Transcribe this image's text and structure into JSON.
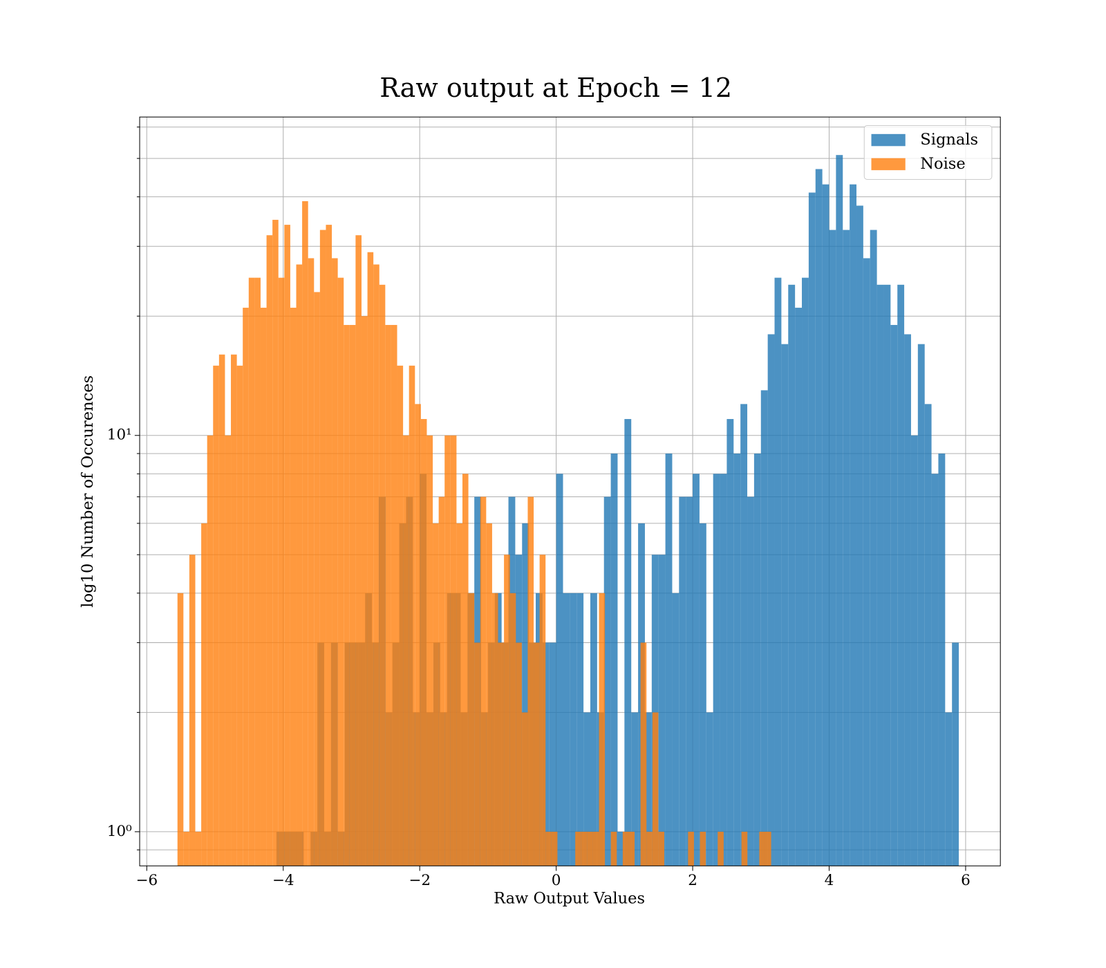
{
  "chart_data": {
    "type": "histogram",
    "title": "Raw output at Epoch = 12",
    "x_label": "Raw Output Values",
    "y_label": "log10 Number of Occurences",
    "log_y": true,
    "grid": true,
    "legend_position": "upper-right",
    "xlim": [
      -6.104,
      6.509
    ],
    "ylim": [
      0.82,
      63.6
    ],
    "xticks": [
      {
        "value": -6,
        "label": "−6"
      },
      {
        "value": -4,
        "label": "−4"
      },
      {
        "value": -2,
        "label": "−2"
      },
      0,
      2,
      4,
      6
    ],
    "yticks": [
      {
        "value": 1,
        "label": "10⁰"
      },
      {
        "value": 10,
        "label": "10¹"
      }
    ],
    "yminorticks": [
      0.9,
      2,
      3,
      4,
      5,
      6,
      7,
      8,
      9,
      20,
      30,
      40,
      50,
      60
    ],
    "series": [
      {
        "name": "Signals",
        "color": "#1f77b4",
        "bins": [
          -4.1,
          -4.0,
          -3.9,
          -3.8,
          -3.7,
          -3.6,
          -3.5,
          -3.4,
          -3.3,
          -3.2,
          -3.1,
          -3.0,
          -2.9,
          -2.8,
          -2.7,
          -2.6,
          -2.5,
          -2.4,
          -2.3,
          -2.2,
          -2.1,
          -2.0,
          -1.9,
          -1.8,
          -1.7,
          -1.6,
          -1.5,
          -1.4,
          -1.3,
          -1.2,
          -1.1,
          -1.0,
          -0.9,
          -0.8,
          -0.7,
          -0.6,
          -0.5,
          -0.4,
          -0.3,
          -0.2,
          -0.1,
          0.0,
          0.1,
          0.2,
          0.3,
          0.4,
          0.5,
          0.6,
          0.7,
          0.8,
          0.9,
          1.0,
          1.1,
          1.2,
          1.3,
          1.4,
          1.5,
          1.6,
          1.7,
          1.8,
          1.9,
          2.0,
          2.1,
          2.2,
          2.3,
          2.4,
          2.5,
          2.6,
          2.7,
          2.8,
          2.9,
          3.0,
          3.1,
          3.2,
          3.3,
          3.4,
          3.5,
          3.6,
          3.7,
          3.8,
          3.9,
          4.0,
          4.1,
          4.2,
          4.3,
          4.4,
          4.5,
          4.6,
          4.7,
          4.8,
          4.9,
          5.0,
          5.1,
          5.2,
          5.3,
          5.4,
          5.5,
          5.6,
          5.7,
          5.8,
          5.9
        ],
        "values": [
          1,
          1,
          1,
          1,
          0,
          1,
          3,
          1,
          3,
          1,
          3,
          3,
          3,
          4,
          3,
          7,
          2,
          3,
          6,
          7,
          2,
          8,
          2,
          3,
          2,
          4,
          4,
          2,
          4,
          7,
          2,
          3,
          4,
          3,
          7,
          5,
          6,
          3,
          4,
          3,
          3,
          8,
          4,
          4,
          4,
          2,
          4,
          2,
          7,
          9,
          1,
          11,
          2,
          6,
          2,
          5,
          5,
          9,
          4,
          7,
          7,
          8,
          6,
          2,
          8,
          8,
          11,
          9,
          12,
          7,
          9,
          13,
          18,
          25,
          17,
          24,
          21,
          25,
          41,
          47,
          43,
          33,
          51,
          33,
          43,
          38,
          28,
          33,
          24,
          24,
          19,
          24,
          18,
          10,
          17,
          12,
          8,
          9,
          2,
          3
        ]
      },
      {
        "name": "Noise",
        "color": "#ff7f0e",
        "bins": [
          -5.55,
          -5.463,
          -5.376,
          -5.289,
          -5.202,
          -5.115,
          -5.028,
          -4.941,
          -4.854,
          -4.767,
          -4.68,
          -4.593,
          -4.506,
          -4.419,
          -4.332,
          -4.245,
          -4.158,
          -4.071,
          -3.984,
          -3.897,
          -3.81,
          -3.723,
          -3.636,
          -3.549,
          -3.462,
          -3.375,
          -3.288,
          -3.201,
          -3.114,
          -3.027,
          -2.94,
          -2.853,
          -2.766,
          -2.679,
          -2.592,
          -2.505,
          -2.418,
          -2.331,
          -2.244,
          -2.157,
          -2.07,
          -1.983,
          -1.896,
          -1.809,
          -1.722,
          -1.635,
          -1.548,
          -1.461,
          -1.374,
          -1.287,
          -1.2,
          -1.113,
          -1.026,
          -0.939,
          -0.852,
          -0.765,
          -0.678,
          -0.591,
          -0.504,
          -0.417,
          -0.33,
          -0.243,
          -0.156,
          -0.069,
          0.018,
          0.105,
          0.192,
          0.279,
          0.366,
          0.453,
          0.54,
          0.627,
          0.714,
          0.801,
          0.888,
          0.975,
          1.062,
          1.149,
          1.236,
          1.323,
          1.41,
          1.497,
          1.584,
          1.671,
          1.758,
          1.845,
          1.932,
          2.019,
          2.106,
          2.193,
          2.28,
          2.367,
          2.454,
          2.541,
          2.628,
          2.715,
          2.802,
          2.889,
          2.976,
          3.063,
          3.15
        ],
        "values": [
          4,
          1,
          5,
          1,
          6,
          10,
          15,
          16,
          10,
          16,
          15,
          21,
          25,
          25,
          21,
          32,
          35,
          25,
          34,
          21,
          27,
          39,
          28,
          23,
          33,
          34,
          28,
          25,
          19,
          19,
          32,
          20,
          29,
          27,
          24,
          19,
          19,
          15,
          10,
          15,
          12,
          11,
          10,
          6,
          7,
          10,
          10,
          6,
          8,
          4,
          3,
          7,
          6,
          4,
          3,
          5,
          4,
          3,
          2,
          7,
          3,
          5,
          1,
          1,
          0,
          0,
          0,
          1,
          1,
          1,
          1,
          4,
          0,
          1,
          0,
          1,
          1,
          0,
          3,
          1,
          2,
          1,
          0,
          0,
          0,
          0,
          1,
          0,
          1,
          0,
          0,
          1,
          0,
          0,
          0,
          1,
          0,
          0,
          1,
          1
        ]
      }
    ]
  }
}
